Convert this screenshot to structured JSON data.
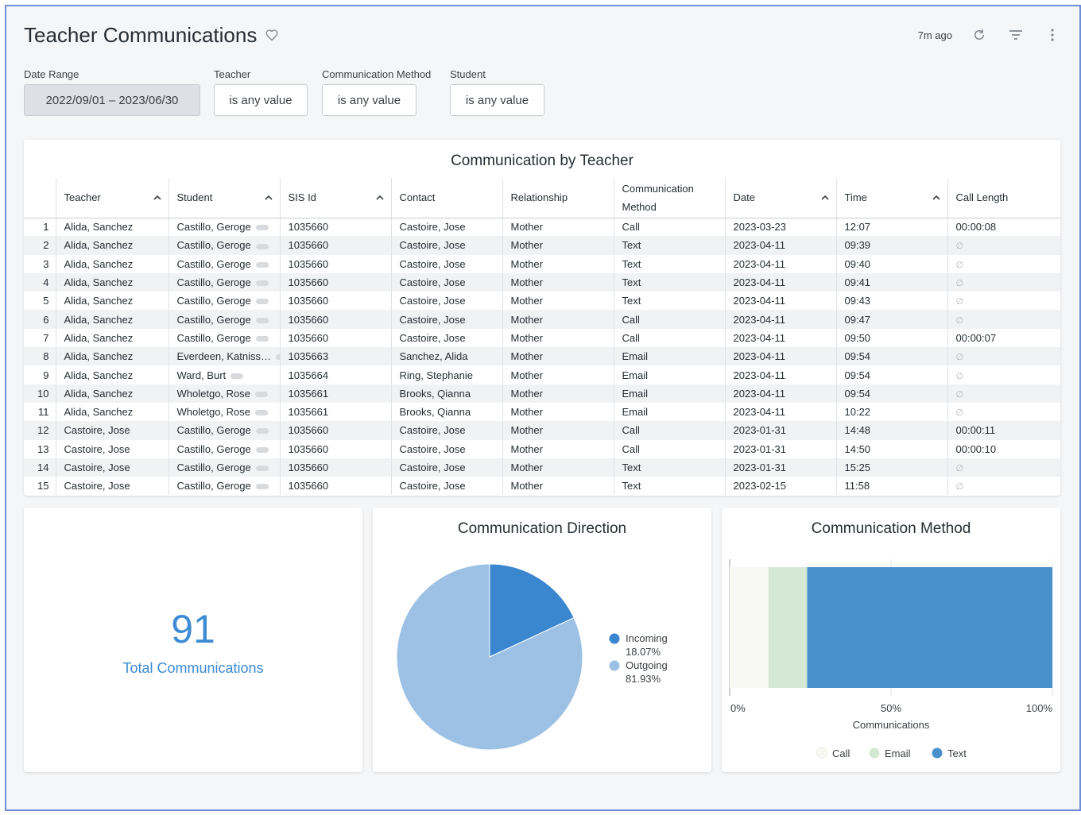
{
  "header": {
    "title": "Teacher Communications",
    "updated": "7m ago"
  },
  "filters": [
    {
      "label": "Date Range",
      "value": "2022/09/01 – 2023/06/30"
    },
    {
      "label": "Teacher",
      "value": "is any value"
    },
    {
      "label": "Communication Method",
      "value": "is any value"
    },
    {
      "label": "Student",
      "value": "is any value"
    }
  ],
  "table": {
    "title": "Communication by Teacher",
    "columns": [
      "Teacher",
      "Student",
      "SIS Id",
      "Contact",
      "Relationship",
      "Communication Method",
      "Date",
      "Time",
      "Call Length"
    ],
    "null_symbol": "∅",
    "rows": [
      [
        "1",
        "Alida, Sanchez",
        "Castillo, Geroge",
        "1035660",
        "Castoire, Jose",
        "Mother",
        "Call",
        "2023-03-23",
        "12:07",
        "00:00:08"
      ],
      [
        "2",
        "Alida, Sanchez",
        "Castillo, Geroge",
        "1035660",
        "Castoire, Jose",
        "Mother",
        "Text",
        "2023-04-11",
        "09:39",
        ""
      ],
      [
        "3",
        "Alida, Sanchez",
        "Castillo, Geroge",
        "1035660",
        "Castoire, Jose",
        "Mother",
        "Text",
        "2023-04-11",
        "09:40",
        ""
      ],
      [
        "4",
        "Alida, Sanchez",
        "Castillo, Geroge",
        "1035660",
        "Castoire, Jose",
        "Mother",
        "Text",
        "2023-04-11",
        "09:41",
        ""
      ],
      [
        "5",
        "Alida, Sanchez",
        "Castillo, Geroge",
        "1035660",
        "Castoire, Jose",
        "Mother",
        "Text",
        "2023-04-11",
        "09:43",
        ""
      ],
      [
        "6",
        "Alida, Sanchez",
        "Castillo, Geroge",
        "1035660",
        "Castoire, Jose",
        "Mother",
        "Call",
        "2023-04-11",
        "09:47",
        ""
      ],
      [
        "7",
        "Alida, Sanchez",
        "Castillo, Geroge",
        "1035660",
        "Castoire, Jose",
        "Mother",
        "Call",
        "2023-04-11",
        "09:50",
        "00:00:07"
      ],
      [
        "8",
        "Alida, Sanchez",
        "Everdeen, Katniss…",
        "1035663",
        "Sanchez, Alida",
        "Mother",
        "Email",
        "2023-04-11",
        "09:54",
        ""
      ],
      [
        "9",
        "Alida, Sanchez",
        "Ward, Burt",
        "1035664",
        "Ring, Stephanie",
        "Mother",
        "Email",
        "2023-04-11",
        "09:54",
        ""
      ],
      [
        "10",
        "Alida, Sanchez",
        "Wholetgo, Rose",
        "1035661",
        "Brooks, Qianna",
        "Mother",
        "Email",
        "2023-04-11",
        "09:54",
        ""
      ],
      [
        "11",
        "Alida, Sanchez",
        "Wholetgo, Rose",
        "1035661",
        "Brooks, Qianna",
        "Mother",
        "Email",
        "2023-04-11",
        "10:22",
        ""
      ],
      [
        "12",
        "Castoire, Jose",
        "Castillo, Geroge",
        "1035660",
        "Castoire, Jose",
        "Mother",
        "Call",
        "2023-01-31",
        "14:48",
        "00:00:11"
      ],
      [
        "13",
        "Castoire, Jose",
        "Castillo, Geroge",
        "1035660",
        "Castoire, Jose",
        "Mother",
        "Call",
        "2023-01-31",
        "14:50",
        "00:00:10"
      ],
      [
        "14",
        "Castoire, Jose",
        "Castillo, Geroge",
        "1035660",
        "Castoire, Jose",
        "Mother",
        "Text",
        "2023-01-31",
        "15:25",
        ""
      ],
      [
        "15",
        "Castoire, Jose",
        "Castillo, Geroge",
        "1035660",
        "Castoire, Jose",
        "Mother",
        "Text",
        "2023-02-15",
        "11:58",
        ""
      ]
    ]
  },
  "kpi": {
    "value": "91",
    "label": "Total Communications"
  },
  "chart_data": [
    {
      "type": "pie",
      "title": "Communication Direction",
      "categories": [
        "Incoming",
        "Outgoing"
      ],
      "values": [
        18.07,
        81.93
      ],
      "value_labels": [
        "18.07%",
        "81.93%"
      ],
      "colors": [
        "#3a86cf",
        "#9dc1e4"
      ],
      "legend": "right"
    },
    {
      "type": "bar",
      "orientation": "horizontal-stacked-percent",
      "title": "Communication Method",
      "xlabel": "Communications",
      "xlim": [
        0,
        100
      ],
      "ticks": [
        "0%",
        "50%",
        "100%"
      ],
      "series": [
        {
          "name": "Call",
          "values": [
            12
          ],
          "color": "#f7f9f2"
        },
        {
          "name": "Email",
          "values": [
            12
          ],
          "color": "#d5e8d4"
        },
        {
          "name": "Text",
          "values": [
            76
          ],
          "color": "#4a90cc"
        }
      ],
      "legend": "bottom"
    }
  ]
}
